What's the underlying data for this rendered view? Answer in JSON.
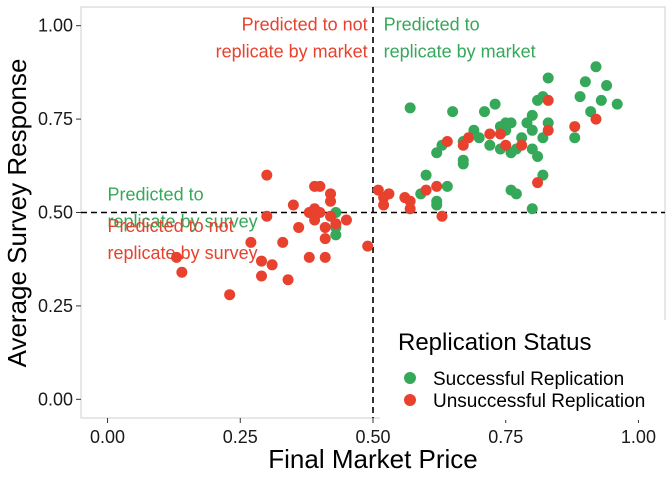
{
  "chart_data": {
    "type": "scatter",
    "xlabel": "Final Market Price",
    "ylabel": "Average Survey Response",
    "xlim": [
      -0.05,
      1.05
    ],
    "ylim": [
      -0.05,
      1.05
    ],
    "x_ticks": [
      0.0,
      0.25,
      0.5,
      0.75,
      1.0
    ],
    "x_tick_labels": [
      "0.00",
      "0.25",
      "0.50",
      "0.75",
      "1.00"
    ],
    "y_ticks": [
      0.0,
      0.25,
      0.5,
      0.75,
      1.0
    ],
    "y_tick_labels": [
      "0.00",
      "0.25",
      "0.50",
      "0.75",
      "1.00"
    ],
    "grid": false,
    "reference_lines": [
      {
        "orientation": "vertical",
        "value": 0.5,
        "style": "dashed"
      },
      {
        "orientation": "horizontal",
        "value": 0.5,
        "style": "dashed"
      }
    ],
    "legend": {
      "title": "Replication Status",
      "placement": "bottom-right",
      "entries": [
        {
          "label": "Successful Replication",
          "color": "#35a85a"
        },
        {
          "label": "Unsuccessful Replication",
          "color": "#e8412d"
        }
      ]
    },
    "annotations": [
      {
        "lines": [
          "Predicted to not",
          "replicate by market"
        ],
        "color": "#e8412d",
        "anchor": "end",
        "x": 0.49,
        "y": 1.03
      },
      {
        "lines": [
          "Predicted to",
          "replicate by market"
        ],
        "color": "#35a85a",
        "anchor": "start",
        "x": 0.52,
        "y": 1.03
      },
      {
        "lines": [
          "Predicted to",
          "replicate by survey"
        ],
        "color": "#35a85a",
        "anchor": "start",
        "x": 0.0,
        "y": 0.575
      },
      {
        "lines": [
          "Predicted to not",
          "replicate by survey"
        ],
        "color": "#e8412d",
        "anchor": "start",
        "x": 0.0,
        "y": 0.49
      }
    ],
    "series": [
      {
        "name": "Successful Replication",
        "color": "#35a85a",
        "points": [
          [
            0.43,
            0.5
          ],
          [
            0.43,
            0.46
          ],
          [
            0.43,
            0.44
          ],
          [
            0.57,
            0.78
          ],
          [
            0.59,
            0.55
          ],
          [
            0.6,
            0.6
          ],
          [
            0.62,
            0.53
          ],
          [
            0.62,
            0.52
          ],
          [
            0.62,
            0.66
          ],
          [
            0.63,
            0.68
          ],
          [
            0.64,
            0.57
          ],
          [
            0.65,
            0.77
          ],
          [
            0.67,
            0.64
          ],
          [
            0.67,
            0.63
          ],
          [
            0.67,
            0.69
          ],
          [
            0.69,
            0.72
          ],
          [
            0.7,
            0.7
          ],
          [
            0.71,
            0.77
          ],
          [
            0.72,
            0.68
          ],
          [
            0.73,
            0.79
          ],
          [
            0.74,
            0.73
          ],
          [
            0.74,
            0.67
          ],
          [
            0.75,
            0.72
          ],
          [
            0.76,
            0.74
          ],
          [
            0.76,
            0.66
          ],
          [
            0.76,
            0.56
          ],
          [
            0.77,
            0.67
          ],
          [
            0.77,
            0.55
          ],
          [
            0.78,
            0.7
          ],
          [
            0.79,
            0.74
          ],
          [
            0.8,
            0.72
          ],
          [
            0.8,
            0.67
          ],
          [
            0.8,
            0.51
          ],
          [
            0.8,
            0.76
          ],
          [
            0.81,
            0.8
          ],
          [
            0.81,
            0.65
          ],
          [
            0.82,
            0.81
          ],
          [
            0.82,
            0.6
          ],
          [
            0.82,
            0.7
          ],
          [
            0.83,
            0.74
          ],
          [
            0.83,
            0.86
          ],
          [
            0.88,
            0.7
          ],
          [
            0.89,
            0.81
          ],
          [
            0.9,
            0.85
          ],
          [
            0.91,
            0.77
          ],
          [
            0.92,
            0.89
          ],
          [
            0.93,
            0.8
          ],
          [
            0.94,
            0.84
          ],
          [
            0.96,
            0.79
          ],
          [
            0.75,
            0.74
          ]
        ]
      },
      {
        "name": "Unsuccessful Replication",
        "color": "#e8412d",
        "points": [
          [
            0.13,
            0.38
          ],
          [
            0.14,
            0.34
          ],
          [
            0.23,
            0.28
          ],
          [
            0.27,
            0.42
          ],
          [
            0.29,
            0.37
          ],
          [
            0.29,
            0.33
          ],
          [
            0.3,
            0.49
          ],
          [
            0.3,
            0.6
          ],
          [
            0.31,
            0.36
          ],
          [
            0.33,
            0.42
          ],
          [
            0.34,
            0.32
          ],
          [
            0.35,
            0.52
          ],
          [
            0.36,
            0.46
          ],
          [
            0.38,
            0.5
          ],
          [
            0.38,
            0.38
          ],
          [
            0.39,
            0.48
          ],
          [
            0.39,
            0.51
          ],
          [
            0.39,
            0.57
          ],
          [
            0.4,
            0.5
          ],
          [
            0.4,
            0.57
          ],
          [
            0.41,
            0.38
          ],
          [
            0.41,
            0.46
          ],
          [
            0.41,
            0.43
          ],
          [
            0.42,
            0.55
          ],
          [
            0.42,
            0.49
          ],
          [
            0.42,
            0.53
          ],
          [
            0.43,
            0.47
          ],
          [
            0.45,
            0.48
          ],
          [
            0.49,
            0.41
          ],
          [
            0.51,
            0.56
          ],
          [
            0.52,
            0.54
          ],
          [
            0.52,
            0.52
          ],
          [
            0.53,
            0.55
          ],
          [
            0.56,
            0.54
          ],
          [
            0.57,
            0.53
          ],
          [
            0.57,
            0.51
          ],
          [
            0.6,
            0.56
          ],
          [
            0.62,
            0.57
          ],
          [
            0.63,
            0.49
          ],
          [
            0.64,
            0.69
          ],
          [
            0.67,
            0.68
          ],
          [
            0.68,
            0.7
          ],
          [
            0.72,
            0.71
          ],
          [
            0.74,
            0.71
          ],
          [
            0.75,
            0.68
          ],
          [
            0.78,
            0.68
          ],
          [
            0.81,
            0.58
          ],
          [
            0.83,
            0.8
          ],
          [
            0.83,
            0.72
          ],
          [
            0.88,
            0.73
          ],
          [
            0.92,
            0.75
          ]
        ]
      }
    ]
  }
}
